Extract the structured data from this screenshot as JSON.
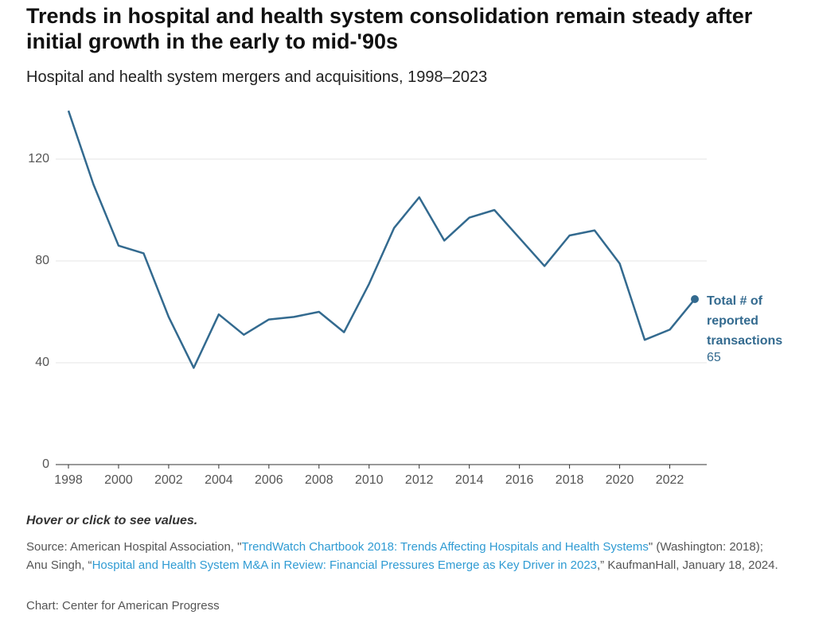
{
  "chart_data": {
    "type": "line",
    "title": "Trends in hospital and health system consolidation remain steady after initial growth in the early to mid-'90s",
    "subtitle": "Hospital and health system mergers and acquisitions, 1998–2023",
    "x": [
      1998,
      1999,
      2000,
      2001,
      2002,
      2003,
      2004,
      2005,
      2006,
      2007,
      2008,
      2009,
      2010,
      2011,
      2012,
      2013,
      2014,
      2015,
      2016,
      2017,
      2018,
      2019,
      2020,
      2021,
      2022,
      2023
    ],
    "series": [
      {
        "name": "Total # of reported transactions",
        "color": "#336a8f",
        "values": [
          139,
          110,
          86,
          83,
          58,
          38,
          59,
          51,
          57,
          58,
          60,
          52,
          71,
          93,
          105,
          88,
          97,
          100,
          89,
          78,
          90,
          92,
          79,
          49,
          53,
          65
        ]
      }
    ],
    "xlim": [
      1998,
      2023
    ],
    "xticks": [
      1998,
      2000,
      2002,
      2004,
      2006,
      2008,
      2010,
      2012,
      2014,
      2016,
      2018,
      2020,
      2022
    ],
    "ylim": [
      0,
      140
    ],
    "yticks": [
      0,
      40,
      80,
      120
    ],
    "grid": true,
    "note": "Hover or click to see values.",
    "source": [
      {
        "text": "Source: American Hospital Association, \"",
        "link": false
      },
      {
        "text": "TrendWatch Chartbook 2018: Trends Affecting Hospitals and Health Systems",
        "link": true
      },
      {
        "text": "\" (Washington: 2018); Anu Singh, “",
        "link": false
      },
      {
        "text": "Hospital and Health System M&A in Review: Financial Pressures Emerge as Key Driver in 2023",
        "link": true
      },
      {
        "text": ",” KaufmanHall, January 18, 2024.",
        "link": false
      }
    ],
    "credit": "Chart: Center for American Progress"
  }
}
